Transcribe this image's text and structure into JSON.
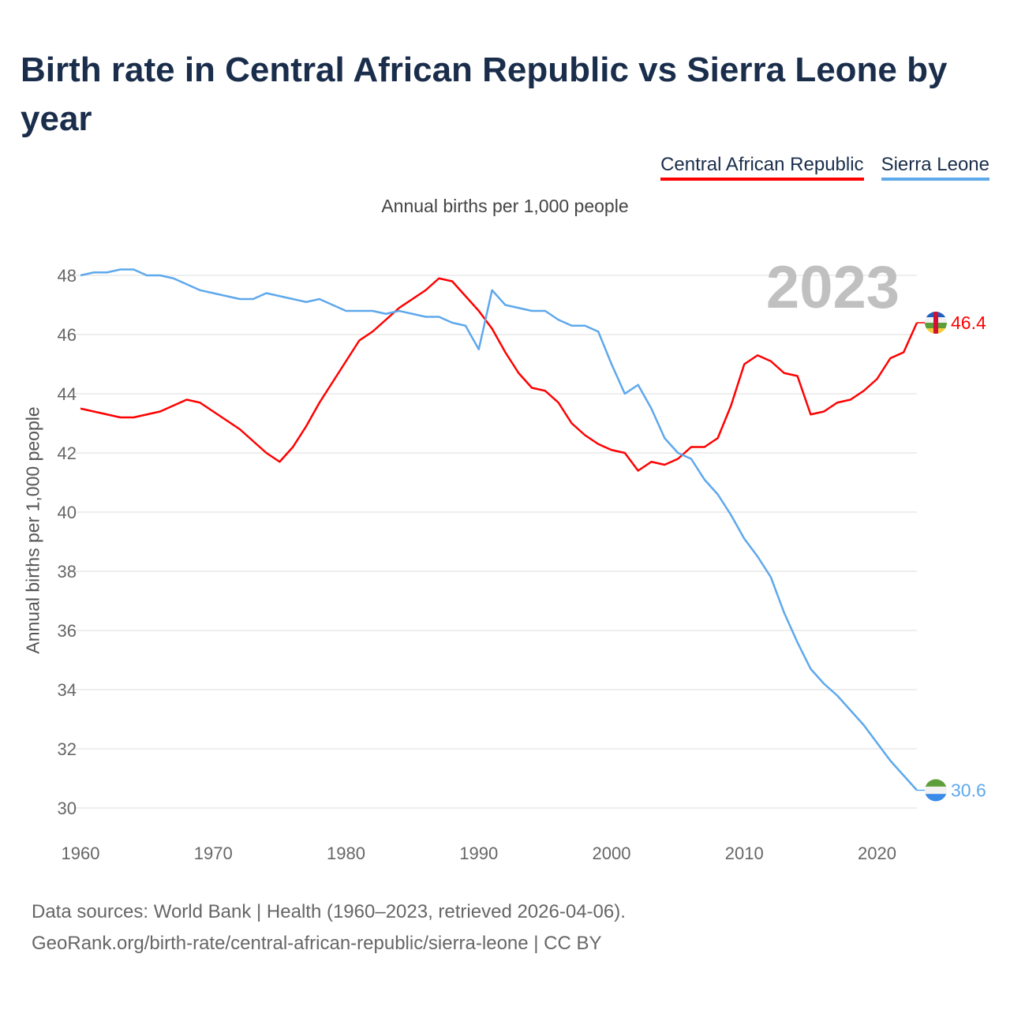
{
  "title": "Birth rate in Central African Republic vs Sierra Leone by year",
  "footer": {
    "line1": "Data sources: World Bank | Health (1960–2023, retrieved 2026-04-06).",
    "line2": "GeoRank.org/birth-rate/central-african-republic/sierra-leone | CC BY"
  },
  "chart_data": {
    "type": "line",
    "title": "Birth rate in Central African Republic vs Sierra Leone by year",
    "subtitle": "Annual births per 1,000 people",
    "ylabel": "Annual births per 1,000 people",
    "xlabel": "",
    "year_watermark": "2023",
    "xlim": [
      1960,
      2023
    ],
    "ylim": [
      30,
      48
    ],
    "xticks": [
      1960,
      1970,
      1980,
      1990,
      2000,
      2010,
      2020
    ],
    "yticks": [
      30,
      32,
      34,
      36,
      38,
      40,
      42,
      44,
      46,
      48
    ],
    "grid": true,
    "legend_position": "top-right",
    "x_start": 1960,
    "series": [
      {
        "name": "Central African Republic",
        "color": "#ff0000",
        "end_label": "46.4",
        "flag": "central-african-republic-flag-icon",
        "values": [
          43.5,
          43.4,
          43.3,
          43.2,
          43.2,
          43.3,
          43.4,
          43.6,
          43.8,
          43.7,
          43.4,
          43.1,
          42.8,
          42.4,
          42.0,
          41.7,
          42.2,
          42.9,
          43.7,
          44.4,
          45.1,
          45.8,
          46.1,
          46.5,
          46.9,
          47.2,
          47.5,
          47.9,
          47.8,
          47.3,
          46.8,
          46.2,
          45.4,
          44.7,
          44.2,
          44.1,
          43.7,
          43.0,
          42.6,
          42.3,
          42.1,
          42.0,
          41.4,
          41.7,
          41.6,
          41.8,
          42.2,
          42.2,
          42.5,
          43.6,
          45.0,
          45.3,
          45.1,
          44.7,
          44.6,
          43.3,
          43.4,
          43.7,
          43.8,
          44.1,
          44.5,
          45.2,
          45.4,
          46.4
        ]
      },
      {
        "name": "Sierra Leone",
        "color": "#5ea8ec",
        "end_label": "30.6",
        "flag": "sierra-leone-flag-icon",
        "values": [
          48.0,
          48.1,
          48.1,
          48.2,
          48.2,
          48.0,
          48.0,
          47.9,
          47.7,
          47.5,
          47.4,
          47.3,
          47.2,
          47.2,
          47.4,
          47.3,
          47.2,
          47.1,
          47.2,
          47.0,
          46.8,
          46.8,
          46.8,
          46.7,
          46.8,
          46.7,
          46.6,
          46.6,
          46.4,
          46.3,
          45.5,
          47.5,
          47.0,
          46.9,
          46.8,
          46.8,
          46.5,
          46.3,
          46.3,
          46.1,
          45.0,
          44.0,
          44.3,
          43.5,
          42.5,
          42.0,
          41.8,
          41.1,
          40.6,
          39.9,
          39.1,
          38.5,
          37.8,
          36.6,
          35.6,
          34.7,
          34.2,
          33.8,
          33.3,
          32.8,
          32.2,
          31.6,
          31.1,
          30.6
        ]
      }
    ]
  }
}
